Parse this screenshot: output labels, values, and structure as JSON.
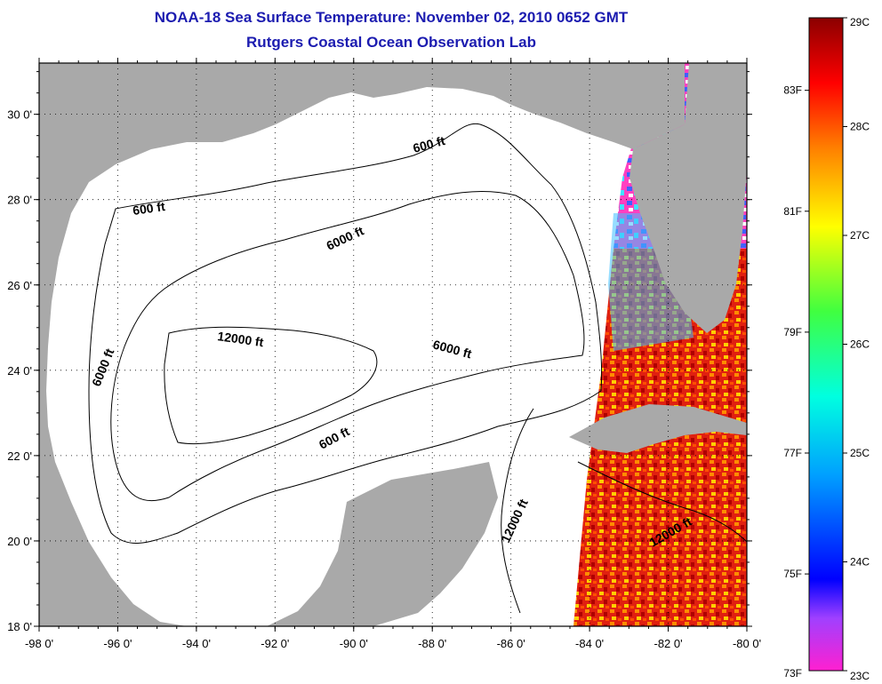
{
  "title_line1": "NOAA-18 Sea Surface Temperature:  November 02, 2010 0652 GMT",
  "title_line2": "Rutgers Coastal Ocean Observation Lab",
  "axes": {
    "lon_ticks": [
      "-98 0'",
      "-96 0'",
      "-94 0'",
      "-92 0'",
      "-90 0'",
      "-88 0'",
      "-86 0'",
      "-84 0'",
      "-82 0'",
      "-80 0'"
    ],
    "lat_ticks": [
      "30 0'",
      "28 0'",
      "26 0'",
      "24 0'",
      "22 0'",
      "20 0'",
      "18 0'"
    ],
    "lon_range": [
      -98,
      -80
    ],
    "lat_range": [
      18,
      31.2
    ],
    "grid": true
  },
  "depth_labels": [
    "600 ft",
    "600 ft",
    "6000 ft",
    "12000 ft",
    "6000 ft",
    "6000 ft",
    "600 ft",
    "12000 ft",
    "12000 ft"
  ],
  "colorbar": {
    "celsius_labels": [
      "29C",
      "28C",
      "27C",
      "26C",
      "25C",
      "24C",
      "23C"
    ],
    "fahrenheit_labels": [
      "83F",
      "81F",
      "79F",
      "77F",
      "75F",
      "73F"
    ],
    "celsius_range": [
      23,
      29
    ]
  },
  "colors": {
    "land": "#a9a9a9",
    "title": "#1c1cb0"
  }
}
